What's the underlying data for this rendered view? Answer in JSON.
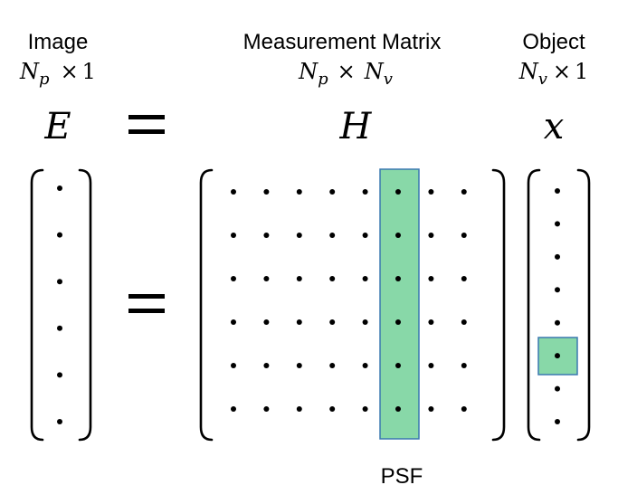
{
  "image_block": {
    "title": "Image",
    "dim_main": "N",
    "dim_sub": "p",
    "dim_times": "×",
    "dim_count": "1",
    "symbol": "E",
    "rows": 6
  },
  "equals_top": "=",
  "matrix_block": {
    "title": "Measurement Matrix",
    "dim_rows_main": "N",
    "dim_rows_sub": "p",
    "dim_times": "×",
    "dim_cols_main": "N",
    "dim_cols_sub": "v",
    "symbol": "H",
    "rows": 6,
    "cols": 8,
    "highlight_col": 6,
    "highlight_color": "#88d8a8",
    "highlight_border": "#3a78b0",
    "highlight_label": "PSF"
  },
  "object_block": {
    "title": "Object",
    "dim_main": "N",
    "dim_sub": "v",
    "dim_times": "×",
    "dim_count": "1",
    "symbol": "x",
    "rows": 8,
    "highlight_row": 6,
    "highlight_color": "#88d8a8",
    "highlight_border": "#3a78b0"
  }
}
